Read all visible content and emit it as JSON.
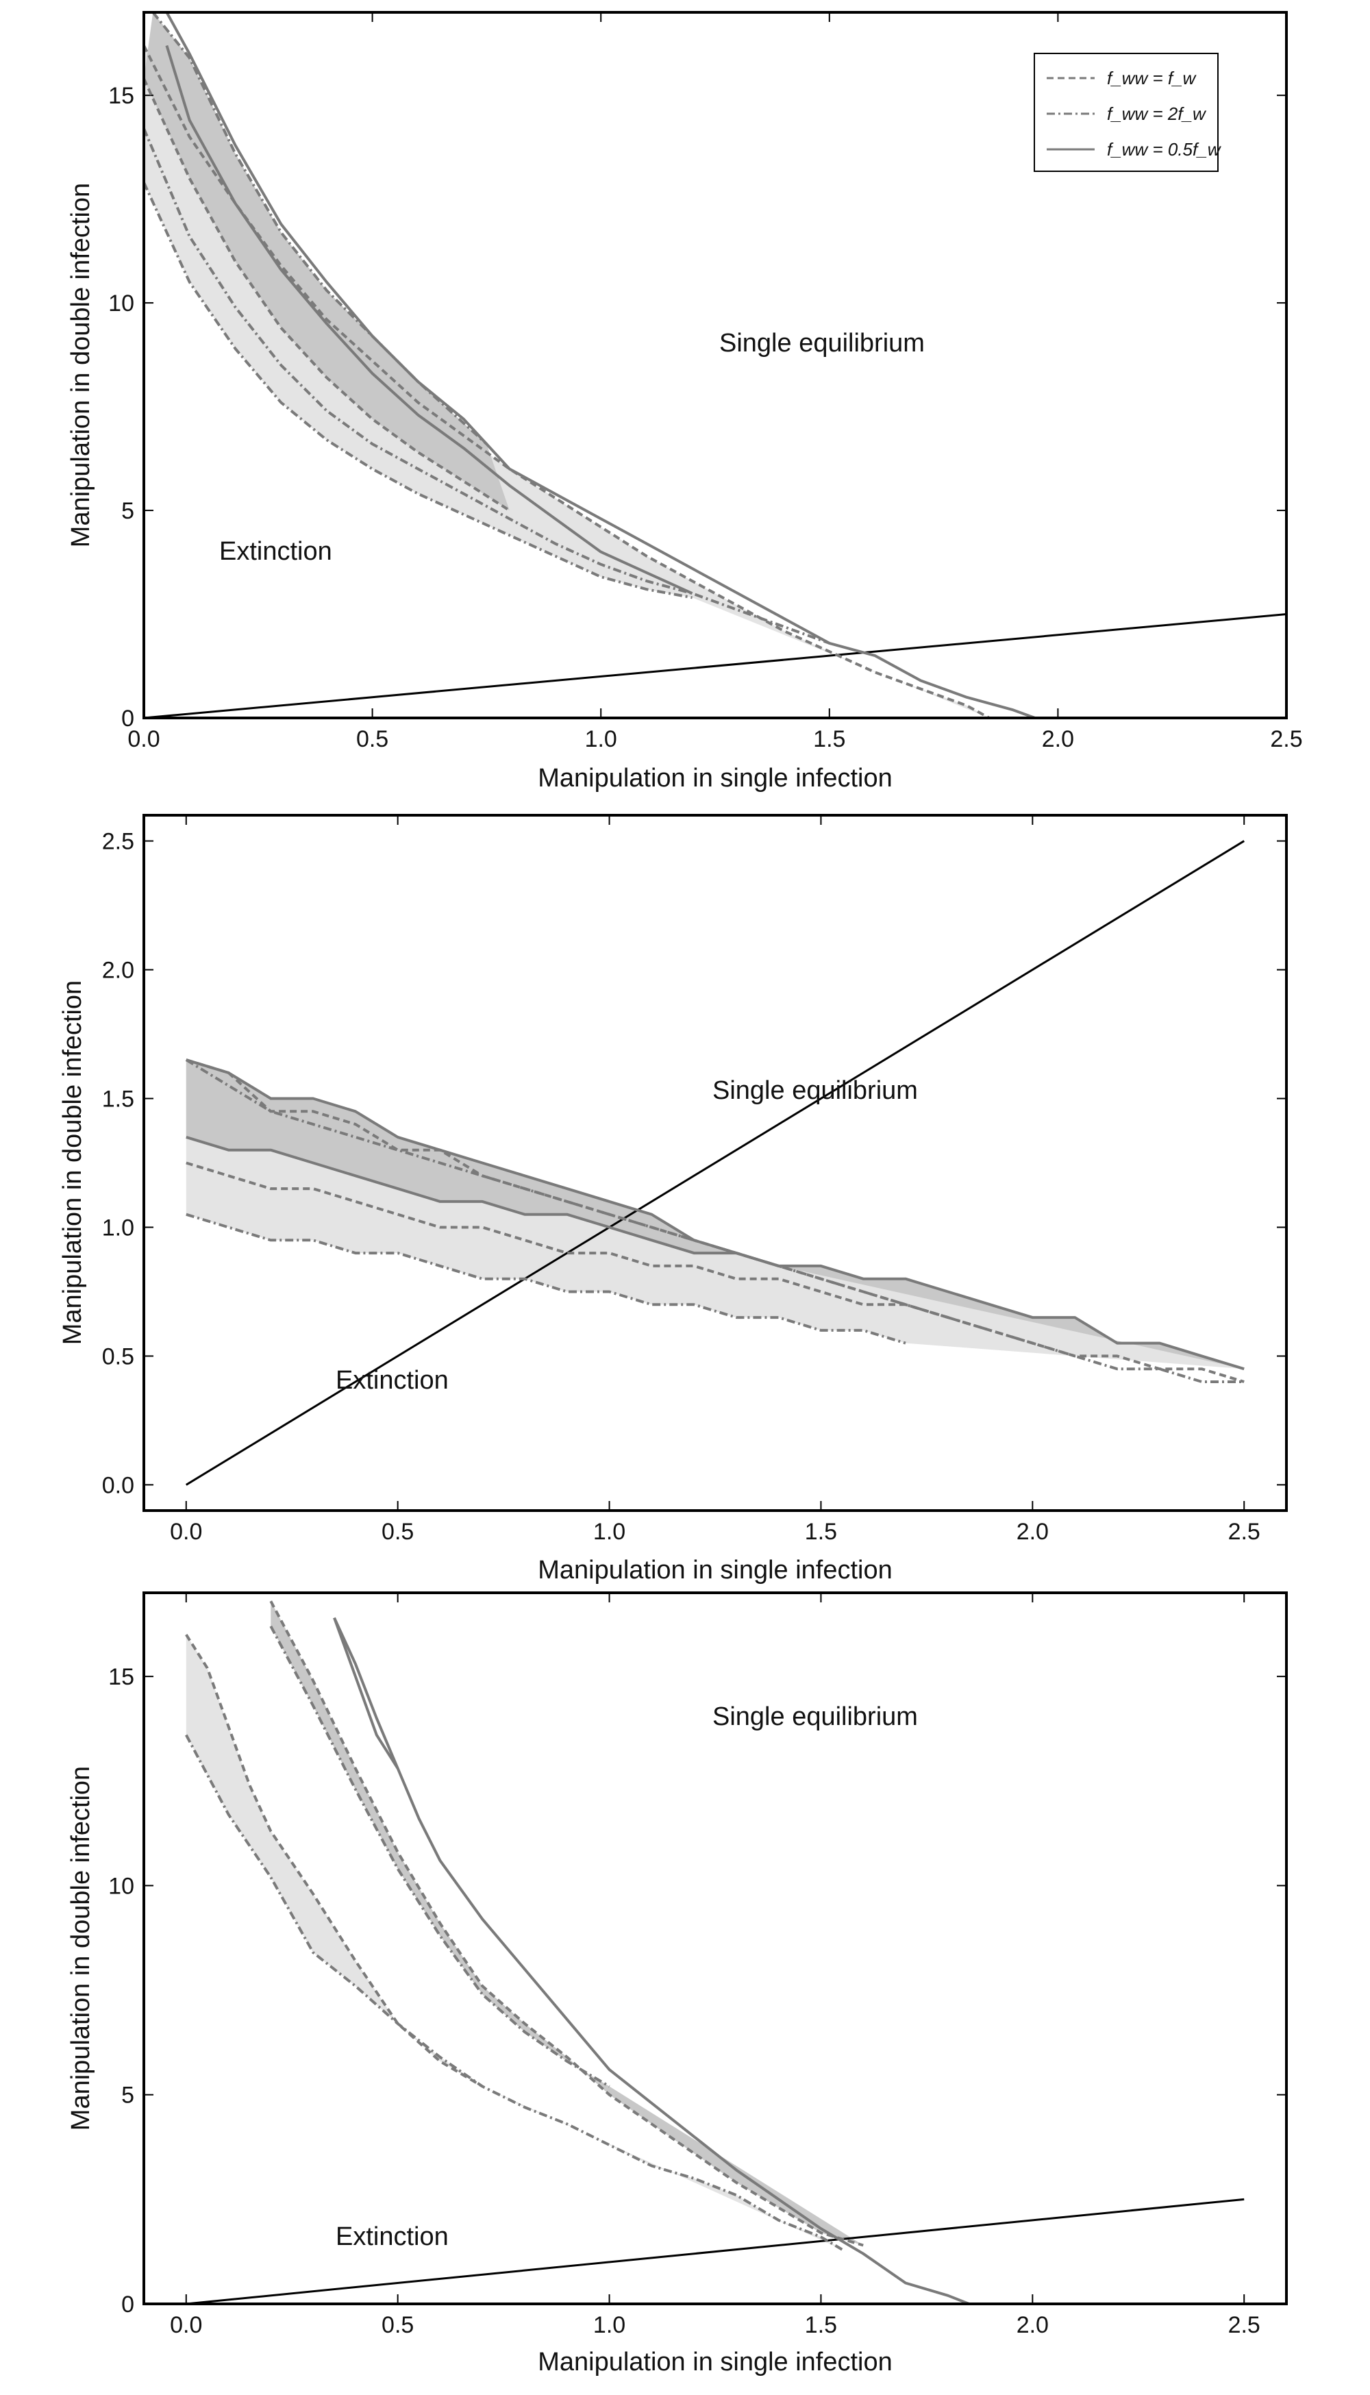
{
  "colors": {
    "curve": "#7a7a7a",
    "diagonal": "#000000",
    "band_dark": "#c8c8c8",
    "band_light": "#e4e4e4",
    "frame": "#000000"
  },
  "legend": {
    "entries": [
      {
        "label": "f_ww = f_w",
        "style": "dashed"
      },
      {
        "label": "f_ww = 2f_w",
        "style": "dashdot"
      },
      {
        "label": "f_ww = 0.5f_w",
        "style": "solid"
      }
    ]
  },
  "chart_data": [
    {
      "type": "line",
      "xlabel": "Manipulation in single infection",
      "ylabel": "Manipulation in double infection",
      "xlim": [
        0,
        2.5
      ],
      "ylim": [
        0,
        17
      ],
      "xticks": [
        0.0,
        0.5,
        1.0,
        1.5,
        2.0,
        2.5
      ],
      "xtick_labels": [
        "0.0",
        "0.5",
        "1.0",
        "1.5",
        "2.0",
        "2.5"
      ],
      "yticks": [
        0,
        5,
        10,
        15
      ],
      "ytick_labels": [
        "0",
        "5",
        "10",
        "15"
      ],
      "legend_position": "top-right",
      "annotations": [
        {
          "text": "Single equilibrium",
          "x": 1.6,
          "y": 8.9
        },
        {
          "text": "Extinction",
          "x": 0.3,
          "y": 4.0
        }
      ],
      "diagonal": [
        [
          0,
          0
        ],
        [
          2.5,
          2.5
        ]
      ],
      "series": [
        {
          "style": "dashed",
          "x": [
            0.0,
            0.1,
            0.2,
            0.3,
            0.4,
            0.5,
            0.6,
            0.7,
            0.8,
            0.9,
            1.0,
            1.1,
            1.2,
            1.3,
            1.4,
            1.5,
            1.6,
            1.7,
            1.8,
            1.85
          ],
          "y": [
            16.2,
            14.0,
            12.4,
            10.9,
            9.6,
            8.6,
            7.6,
            6.8,
            6.0,
            5.3,
            4.6,
            3.9,
            3.3,
            2.7,
            2.1,
            1.6,
            1.1,
            0.7,
            0.3,
            0.0
          ]
        },
        {
          "style": "dashed",
          "x": [
            0.0,
            0.1,
            0.2,
            0.3,
            0.4,
            0.5,
            0.6,
            0.7,
            0.8
          ],
          "y": [
            15.4,
            13.0,
            11.0,
            9.4,
            8.2,
            7.2,
            6.4,
            5.7,
            5.0
          ]
        },
        {
          "style": "dashdot",
          "x": [
            0.02,
            0.1,
            0.2,
            0.3,
            0.4,
            0.5,
            0.6,
            0.7,
            0.75
          ],
          "y": [
            17.0,
            15.9,
            13.6,
            11.7,
            10.3,
            9.2,
            8.1,
            7.1,
            6.6
          ]
        },
        {
          "style": "dashdot",
          "x": [
            0.0,
            0.1,
            0.2,
            0.3,
            0.4,
            0.5,
            0.6,
            0.7,
            0.8,
            0.9,
            1.0,
            1.1,
            1.2,
            1.3,
            1.4,
            1.5
          ],
          "y": [
            14.2,
            11.6,
            9.9,
            8.5,
            7.4,
            6.6,
            6.0,
            5.4,
            4.8,
            4.2,
            3.7,
            3.3,
            3.0,
            2.6,
            2.2,
            1.8
          ]
        },
        {
          "style": "dashdot",
          "x": [
            0.0,
            0.1,
            0.2,
            0.3,
            0.4,
            0.5,
            0.6,
            0.7,
            0.8,
            0.9,
            1.0,
            1.1,
            1.2
          ],
          "y": [
            12.9,
            10.5,
            8.9,
            7.6,
            6.7,
            6.0,
            5.4,
            4.9,
            4.4,
            3.9,
            3.4,
            3.1,
            2.9
          ]
        },
        {
          "style": "solid",
          "x": [
            0.05,
            0.1,
            0.2,
            0.3,
            0.4,
            0.5,
            0.6,
            0.7,
            0.8,
            1.0,
            1.2,
            1.4,
            1.5,
            1.6,
            1.7,
            1.8,
            1.9,
            1.95
          ],
          "y": [
            17.0,
            16.0,
            13.8,
            11.9,
            10.5,
            9.2,
            8.1,
            7.2,
            6.0,
            4.8,
            3.6,
            2.4,
            1.8,
            1.5,
            0.9,
            0.5,
            0.2,
            0.0
          ]
        },
        {
          "style": "solid",
          "x": [
            0.05,
            0.1,
            0.2,
            0.3,
            0.4,
            0.5,
            0.6,
            0.7,
            0.8,
            0.9,
            1.0,
            1.1,
            1.2
          ],
          "y": [
            16.2,
            14.4,
            12.4,
            10.8,
            9.5,
            8.3,
            7.3,
            6.5,
            5.6,
            4.8,
            4.0,
            3.5,
            3.0
          ]
        }
      ]
    },
    {
      "type": "line",
      "xlabel": "Manipulation in single infection",
      "ylabel": "Manipulation in double infection",
      "xlim": [
        -0.1,
        2.6
      ],
      "ylim": [
        -0.1,
        2.6
      ],
      "xticks": [
        0.0,
        0.5,
        1.0,
        1.5,
        2.0,
        2.5
      ],
      "xtick_labels": [
        "0.0",
        "0.5",
        "1.0",
        "1.5",
        "2.0",
        "2.5"
      ],
      "yticks": [
        0.0,
        0.5,
        1.0,
        1.5,
        2.0,
        2.5
      ],
      "ytick_labels": [
        "0.0",
        "0.5",
        "1.0",
        "1.5",
        "2.0",
        "2.5"
      ],
      "annotations": [
        {
          "text": "Single equilibrium",
          "x": 1.5,
          "y": 1.49
        },
        {
          "text": "Extinction",
          "x": 0.5,
          "y": 0.39
        }
      ],
      "diagonal": [
        [
          0,
          0
        ],
        [
          2.5,
          2.5
        ]
      ],
      "series": [
        {
          "style": "solid",
          "x": [
            0.0,
            0.1,
            0.2,
            0.3,
            0.4,
            0.5,
            0.6,
            0.7,
            0.8,
            0.9,
            1.0,
            1.1,
            1.2,
            1.3,
            1.4,
            1.5,
            1.6,
            1.7,
            1.8,
            1.9,
            2.0,
            2.1,
            2.2,
            2.3,
            2.4,
            2.5
          ],
          "y": [
            1.65,
            1.6,
            1.5,
            1.5,
            1.45,
            1.35,
            1.3,
            1.25,
            1.2,
            1.15,
            1.1,
            1.05,
            0.95,
            0.9,
            0.85,
            0.85,
            0.8,
            0.8,
            0.75,
            0.7,
            0.65,
            0.65,
            0.55,
            0.55,
            0.5,
            0.45
          ]
        },
        {
          "style": "dashdot",
          "x": [
            0.0,
            0.1,
            0.2,
            0.3,
            0.4,
            0.5,
            0.6,
            0.7,
            0.8,
            0.9,
            1.0,
            1.1,
            1.2,
            1.3,
            1.4,
            1.5,
            1.6,
            1.7,
            1.8,
            1.9,
            2.0,
            2.1,
            2.2,
            2.3,
            2.4,
            2.5
          ],
          "y": [
            1.65,
            1.55,
            1.45,
            1.4,
            1.35,
            1.3,
            1.25,
            1.2,
            1.15,
            1.1,
            1.05,
            1.0,
            0.95,
            0.9,
            0.85,
            0.8,
            0.75,
            0.7,
            0.65,
            0.6,
            0.55,
            0.5,
            0.45,
            0.45,
            0.4,
            0.4
          ]
        },
        {
          "style": "dashed",
          "x": [
            0.0,
            0.1,
            0.2,
            0.3,
            0.4,
            0.5,
            0.6,
            0.7,
            0.8,
            0.9,
            1.0,
            1.1,
            1.2,
            1.3,
            1.4,
            1.5,
            1.6,
            1.7,
            1.8,
            1.9,
            2.0,
            2.1,
            2.2,
            2.3,
            2.4,
            2.5
          ],
          "y": [
            1.65,
            1.6,
            1.45,
            1.45,
            1.4,
            1.3,
            1.3,
            1.2,
            1.15,
            1.1,
            1.05,
            1.0,
            0.95,
            0.9,
            0.85,
            0.8,
            0.75,
            0.7,
            0.65,
            0.6,
            0.55,
            0.5,
            0.5,
            0.45,
            0.45,
            0.4
          ]
        },
        {
          "style": "solid",
          "x": [
            0.0,
            0.1,
            0.2,
            0.3,
            0.4,
            0.5,
            0.6,
            0.7,
            0.8,
            0.9,
            1.0,
            1.1,
            1.2,
            1.3,
            1.4
          ],
          "y": [
            1.35,
            1.3,
            1.3,
            1.25,
            1.2,
            1.15,
            1.1,
            1.1,
            1.05,
            1.05,
            1.0,
            0.95,
            0.9,
            0.9,
            0.85
          ]
        },
        {
          "style": "dashed",
          "x": [
            0.0,
            0.1,
            0.2,
            0.3,
            0.4,
            0.5,
            0.6,
            0.7,
            0.8,
            0.9,
            1.0,
            1.1,
            1.2,
            1.3,
            1.4,
            1.5,
            1.6,
            1.7,
            1.8
          ],
          "y": [
            1.25,
            1.2,
            1.15,
            1.15,
            1.1,
            1.05,
            1.0,
            1.0,
            0.95,
            0.9,
            0.9,
            0.85,
            0.85,
            0.8,
            0.8,
            0.75,
            0.7,
            0.7,
            0.65
          ]
        },
        {
          "style": "dashdot",
          "x": [
            0.0,
            0.1,
            0.2,
            0.3,
            0.4,
            0.5,
            0.6,
            0.7,
            0.8,
            0.9,
            1.0,
            1.1,
            1.2,
            1.3,
            1.4,
            1.5,
            1.6,
            1.7
          ],
          "y": [
            1.05,
            1.0,
            0.95,
            0.95,
            0.9,
            0.9,
            0.85,
            0.8,
            0.8,
            0.75,
            0.75,
            0.7,
            0.7,
            0.65,
            0.65,
            0.6,
            0.6,
            0.55
          ]
        }
      ]
    },
    {
      "type": "line",
      "xlabel": "Manipulation in single infection",
      "ylabel": "Manipulation in double infection",
      "xlim": [
        -0.1,
        2.6
      ],
      "ylim": [
        0,
        17
      ],
      "xticks": [
        0.0,
        0.5,
        1.0,
        1.5,
        2.0,
        2.5
      ],
      "xtick_labels": [
        "0.0",
        "0.5",
        "1.0",
        "1.5",
        "2.0",
        "2.5"
      ],
      "yticks": [
        0,
        5,
        10,
        15
      ],
      "ytick_labels": [
        "0",
        "5",
        "10",
        "15"
      ],
      "annotations": [
        {
          "text": "Single equilibrium",
          "x": 1.5,
          "y": 13.9
        },
        {
          "text": "Extinction",
          "x": 0.5,
          "y": 1.4
        }
      ],
      "diagonal": [
        [
          0,
          0
        ],
        [
          2.5,
          2.5
        ]
      ],
      "series": [
        {
          "style": "dashed",
          "x": [
            0.0,
            0.05,
            0.1,
            0.15,
            0.2,
            0.3,
            0.4,
            0.5,
            0.6,
            0.7
          ],
          "y": [
            16.0,
            15.2,
            13.8,
            12.4,
            11.3,
            9.8,
            8.2,
            6.7,
            5.8,
            5.2
          ]
        },
        {
          "style": "dashdot",
          "x": [
            0.0,
            0.1,
            0.2,
            0.3,
            0.4,
            0.5,
            0.6,
            0.7,
            0.8,
            0.9,
            1.0,
            1.1,
            1.2,
            1.3,
            1.4,
            1.5,
            1.55
          ],
          "y": [
            13.6,
            11.7,
            10.2,
            8.4,
            7.6,
            6.7,
            5.9,
            5.2,
            4.7,
            4.3,
            3.8,
            3.3,
            3.0,
            2.6,
            2.0,
            1.6,
            1.3
          ]
        },
        {
          "style": "dashed",
          "x": [
            0.2,
            0.3,
            0.4,
            0.5,
            0.6,
            0.7,
            0.8,
            0.9,
            1.0,
            1.1,
            1.2,
            1.3,
            1.4,
            1.5,
            1.6
          ],
          "y": [
            16.8,
            14.9,
            12.8,
            10.8,
            9.1,
            7.6,
            6.7,
            5.9,
            5.0,
            4.3,
            3.6,
            2.9,
            2.3,
            1.7,
            1.4
          ]
        },
        {
          "style": "dashdot",
          "x": [
            0.2,
            0.3,
            0.4,
            0.5,
            0.6,
            0.7,
            0.8,
            0.9,
            1.0
          ],
          "y": [
            16.2,
            14.3,
            12.3,
            10.4,
            8.8,
            7.4,
            6.5,
            5.8,
            5.2
          ]
        },
        {
          "style": "solid",
          "x": [
            0.35,
            0.4,
            0.45,
            0.5,
            0.55,
            0.6,
            0.7,
            0.8,
            0.9,
            1.0,
            1.1,
            1.2,
            1.3,
            1.4,
            1.5,
            1.6,
            1.7,
            1.8,
            1.85,
            1.9,
            2.0,
            2.5
          ],
          "y": [
            16.4,
            15.0,
            13.6,
            12.8,
            11.6,
            10.6,
            9.2,
            8.0,
            6.8,
            5.6,
            4.8,
            4.0,
            3.2,
            2.5,
            1.8,
            1.2,
            0.5,
            0.2,
            0.0,
            0.0,
            0.0,
            0.0
          ]
        },
        {
          "style": "solid",
          "x": [
            0.35,
            0.4,
            0.45,
            0.5
          ],
          "y": [
            16.4,
            15.3,
            14.0,
            12.8
          ]
        }
      ]
    }
  ]
}
